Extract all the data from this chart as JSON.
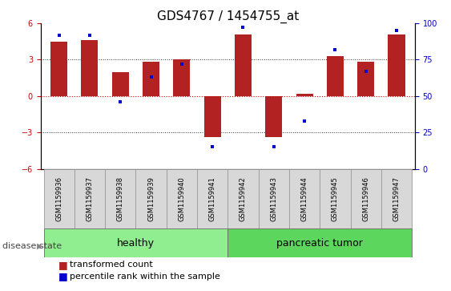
{
  "title": "GDS4767 / 1454755_at",
  "samples": [
    "GSM1159936",
    "GSM1159937",
    "GSM1159938",
    "GSM1159939",
    "GSM1159940",
    "GSM1159941",
    "GSM1159942",
    "GSM1159943",
    "GSM1159944",
    "GSM1159945",
    "GSM1159946",
    "GSM1159947"
  ],
  "transformed_count": [
    4.5,
    4.6,
    2.0,
    2.8,
    3.0,
    -3.4,
    5.1,
    -3.4,
    0.2,
    3.3,
    2.8,
    5.1
  ],
  "percentile_rank": [
    92,
    92,
    46,
    63,
    72,
    15,
    97,
    15,
    33,
    82,
    67,
    95
  ],
  "groups": [
    {
      "label": "healthy",
      "start": 0,
      "end": 6,
      "color": "#90EE90"
    },
    {
      "label": "pancreatic tumor",
      "start": 6,
      "end": 12,
      "color": "#5CD65C"
    }
  ],
  "ylim_left": [
    -6,
    6
  ],
  "ylim_right": [
    0,
    100
  ],
  "yticks_left": [
    -6,
    -3,
    0,
    3,
    6
  ],
  "yticks_right": [
    0,
    25,
    50,
    75,
    100
  ],
  "bar_color": "#B22222",
  "dot_color": "#0000CC",
  "dot_size": 12,
  "bar_width": 0.55,
  "hline_color": "#CC0000",
  "hline_style": ":",
  "grid_color": "#333333",
  "grid_style": ":",
  "bg_color": "#FFFFFF",
  "title_fontsize": 11,
  "tick_fontsize": 7,
  "legend_fontsize": 8,
  "group_label_fontsize": 9,
  "disease_state_fontsize": 8,
  "label_box_color": "#D8D8D8",
  "label_box_border": "#999999"
}
